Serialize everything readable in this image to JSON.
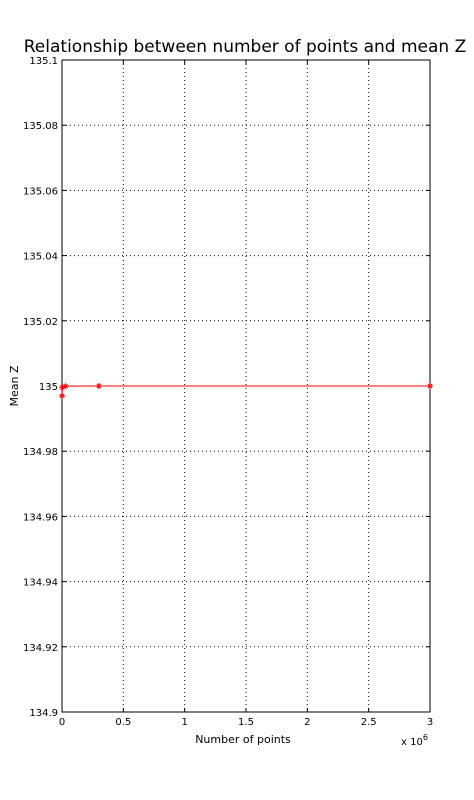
{
  "chart_data": {
    "type": "line",
    "title": "Relationship between number of points and mean Z",
    "xlabel": "Number of points",
    "ylabel": "Mean Z",
    "x_exponent_label": "x 10",
    "x_exponent_power": "6",
    "xlim": [
      0,
      3
    ],
    "ylim": [
      134.9,
      135.1
    ],
    "grid": true,
    "x_ticks": [
      0,
      0.5,
      1,
      1.5,
      2,
      2.5,
      3
    ],
    "x_tick_labels": [
      "0",
      "0.5",
      "1",
      "1.5",
      "2",
      "2.5",
      "3"
    ],
    "y_ticks": [
      134.9,
      134.92,
      134.94,
      134.96,
      134.98,
      135,
      135.02,
      135.04,
      135.06,
      135.08,
      135.1
    ],
    "y_tick_labels": [
      "134.9",
      "134.92",
      "134.94",
      "134.96",
      "134.98",
      "135",
      "135.02",
      "135.04",
      "135.06",
      "135.08",
      "135.1"
    ],
    "series": [
      {
        "color": "#ff0000",
        "marker": "star",
        "x": [
          0.0003,
          0.003,
          0.03,
          0.3,
          3
        ],
        "y": [
          134.997,
          134.9996,
          134.99995,
          135.0,
          135.0
        ]
      }
    ]
  }
}
